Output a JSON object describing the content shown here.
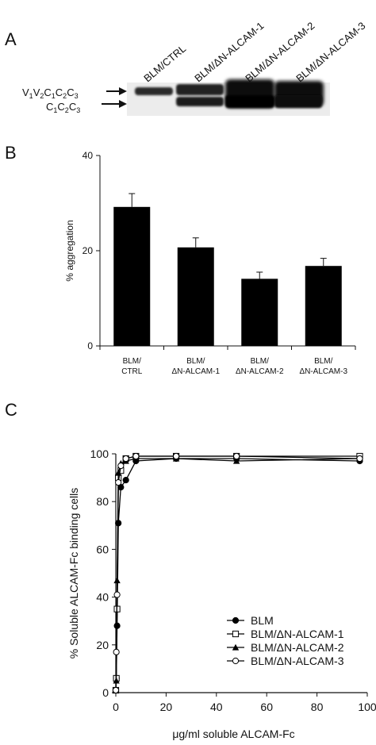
{
  "panel_a": {
    "label": "A",
    "lanes": [
      "BLM/CTRL",
      "BLM/ΔN-ALCAM-1",
      "BLM/ΔN-ALCAM-2",
      "BLM/ΔN-ALCAM-3"
    ],
    "band_upper": "V1V2C1C2C3",
    "band_lower": "C1C2C3"
  },
  "chart_data": [
    {
      "panel": "B",
      "type": "bar",
      "categories": [
        [
          "BLM/",
          "CTRL"
        ],
        [
          "BLM/",
          "ΔN-ALCAM-1"
        ],
        [
          "BLM/",
          "ΔN-ALCAM-2"
        ],
        [
          "BLM/",
          "ΔN-ALCAM-3"
        ]
      ],
      "values": [
        29.2,
        20.7,
        14.1,
        16.8
      ],
      "errors": [
        2.8,
        2.0,
        1.4,
        1.6
      ],
      "ylabel": "% aggregation",
      "ylim": [
        0,
        40
      ],
      "yticks": [
        0,
        20,
        40
      ],
      "bar_color": "#000000"
    },
    {
      "panel": "C",
      "type": "line",
      "xlabel": "μg/ml soluble ALCAM-Fc",
      "ylabel": "% Soluble ALCAM-Fc binding cells",
      "xlim": [
        0,
        100
      ],
      "ylim": [
        0,
        100
      ],
      "xticks": [
        0,
        20,
        40,
        60,
        80,
        100
      ],
      "yticks": [
        0,
        20,
        40,
        60,
        80,
        100
      ],
      "legend_position": "bottom-right",
      "series": [
        {
          "name": "BLM",
          "marker": "filled-circle",
          "x": [
            0,
            0.2,
            0.5,
            1,
            2,
            4,
            8,
            24,
            48,
            97
          ],
          "y": [
            1,
            6,
            28,
            71,
            86,
            89,
            97,
            98,
            98,
            97
          ]
        },
        {
          "name": "BLM/ΔN-ALCAM-1",
          "marker": "open-square",
          "x": [
            0,
            0.2,
            0.5,
            1,
            2,
            4,
            8,
            24,
            48,
            97
          ],
          "y": [
            1,
            6,
            35,
            90,
            93,
            98,
            99,
            99,
            99,
            99
          ]
        },
        {
          "name": "BLM/ΔN-ALCAM-2",
          "marker": "filled-triangle",
          "x": [
            0,
            0.2,
            0.5,
            1,
            2,
            4,
            8,
            24,
            48,
            97
          ],
          "y": [
            1,
            5,
            47,
            92,
            96,
            97,
            98,
            98,
            97,
            98
          ]
        },
        {
          "name": "BLM/ΔN-ALCAM-3",
          "marker": "open-circle",
          "x": [
            0,
            0.2,
            0.5,
            1,
            2,
            4,
            8,
            24,
            48,
            97
          ],
          "y": [
            1,
            17,
            41,
            88,
            95,
            98,
            99,
            99,
            99,
            98
          ]
        }
      ]
    }
  ],
  "panel_labels": {
    "b": "B",
    "c": "C"
  }
}
